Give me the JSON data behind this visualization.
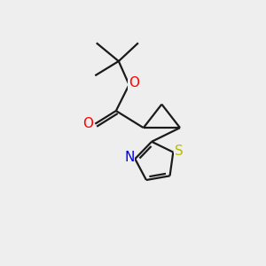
{
  "bg_color": "#eeeeee",
  "bond_color": "#1a1a1a",
  "bond_width": 1.6,
  "atom_colors": {
    "O": "#ff0000",
    "N": "#0000ee",
    "S": "#bbbb00",
    "C": "#1a1a1a"
  },
  "figsize": [
    3.0,
    3.0
  ],
  "dpi": 100
}
